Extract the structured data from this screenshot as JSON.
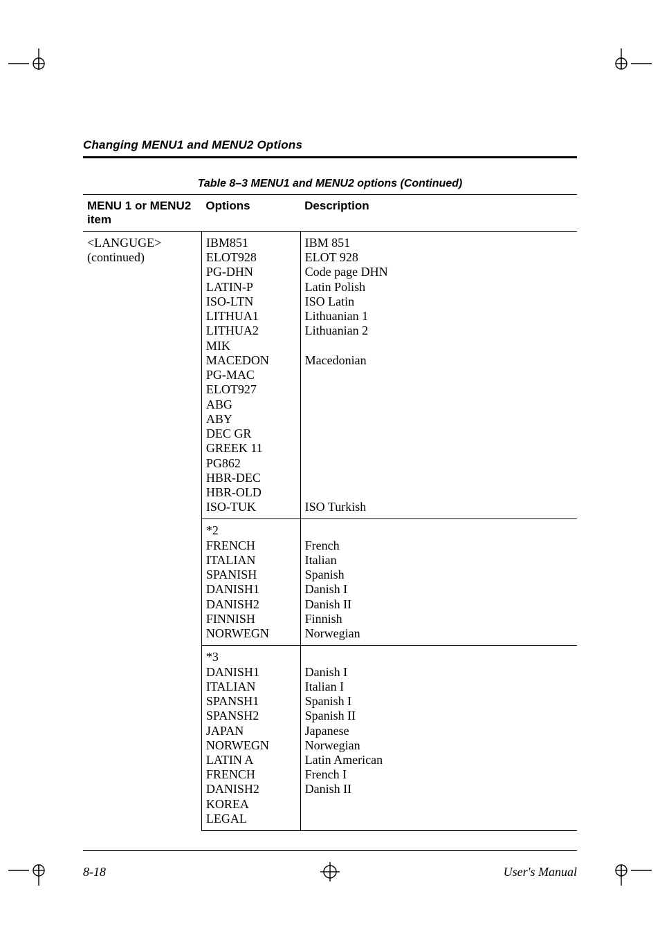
{
  "running_head": "Changing MENU1 and MENU2 Options",
  "table_caption": "Table 8–3   MENU1 and MENU2 options (Continued)",
  "columns": {
    "c1": "MENU 1 or MENU2 item",
    "c2": "Options",
    "c3": "Description"
  },
  "row_label": "<LANGUGE> (continued)",
  "group1": {
    "options": [
      "IBM851",
      "ELOT928",
      "PG-DHN",
      "LATIN-P",
      "ISO-LTN",
      "LITHUA1",
      "LITHUA2",
      "MIK",
      "MACEDON",
      "PG-MAC",
      "ELOT927",
      "ABG",
      "ABY",
      "DEC GR",
      "GREEK 11",
      "PG862",
      "HBR-DEC",
      "HBR-OLD",
      "ISO-TUK"
    ],
    "descriptions": [
      "IBM 851",
      "ELOT 928",
      "Code page DHN",
      "Latin Polish",
      "ISO Latin",
      "Lithuanian 1",
      "Lithuanian 2",
      "",
      "Macedonian",
      "",
      "",
      "",
      "",
      "",
      "",
      "",
      "",
      "",
      "ISO Turkish"
    ]
  },
  "group2": {
    "note": "*2",
    "options": [
      "FRENCH",
      "ITALIAN",
      "SPANISH",
      "DANISH1",
      "DANISH2",
      "FINNISH",
      "NORWEGN"
    ],
    "descriptions": [
      "French",
      "Italian",
      "Spanish",
      "Danish I",
      "Danish II",
      "Finnish",
      "Norwegian"
    ]
  },
  "group3": {
    "note": "*3",
    "options": [
      "DANISH1",
      "ITALIAN",
      "SPANSH1",
      "SPANSH2",
      "JAPAN",
      "NORWEGN",
      "LATIN A",
      "FRENCH",
      "DANISH2",
      "KOREA",
      "LEGAL"
    ],
    "descriptions": [
      "Danish I",
      "Italian I",
      "Spanish I",
      "Spanish II",
      "Japanese",
      "Norwegian",
      "Latin American",
      "French I",
      "Danish II",
      "",
      ""
    ]
  },
  "footer": {
    "page": "8-18",
    "manual": "User's Manual"
  },
  "colors": {
    "ink": "#000000",
    "paper": "#ffffff"
  }
}
